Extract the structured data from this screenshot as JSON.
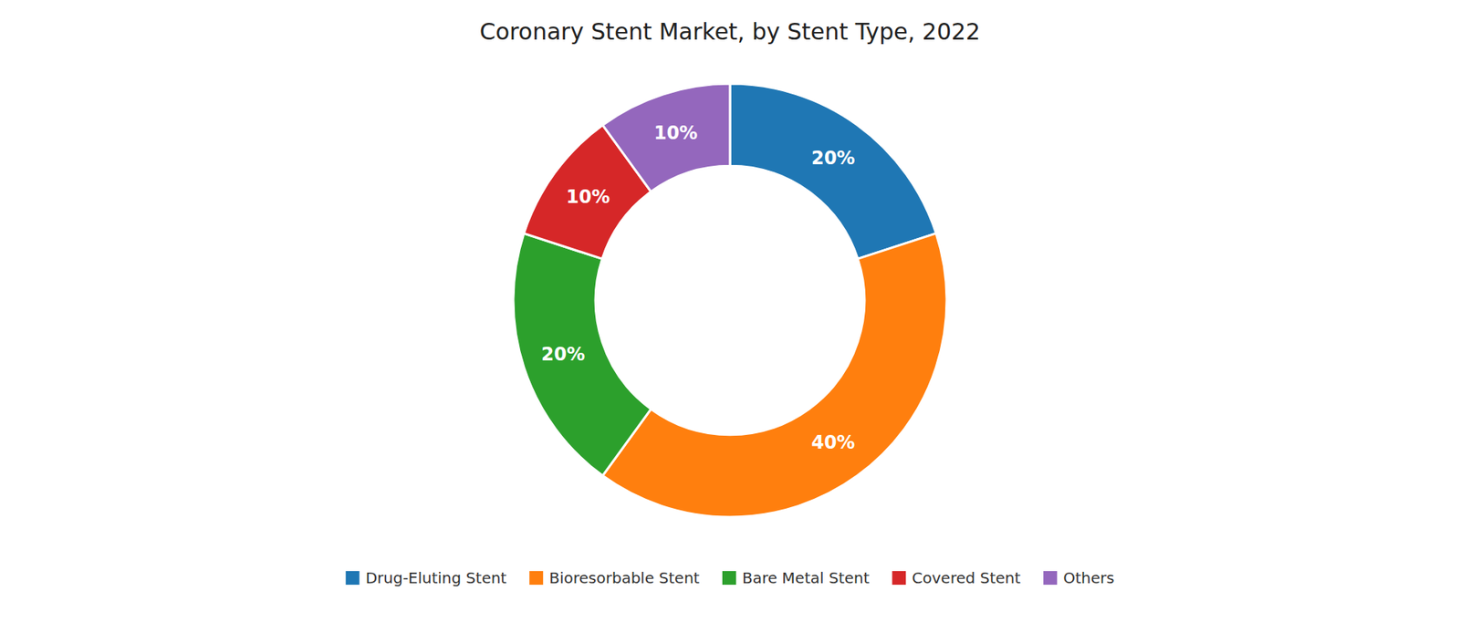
{
  "chart_data": {
    "type": "donut",
    "title": "Coronary Stent Market, by Stent Type, 2022",
    "categories": [
      "Drug-Eluting Stent",
      "Bioresorbable Stent",
      "Bare Metal Stent",
      "Covered Stent",
      "Others"
    ],
    "values": [
      20,
      40,
      20,
      10,
      10
    ],
    "value_labels": [
      "20%",
      "40%",
      "20%",
      "10%",
      "10%"
    ],
    "data_labels": true,
    "legend": "bottom"
  }
}
